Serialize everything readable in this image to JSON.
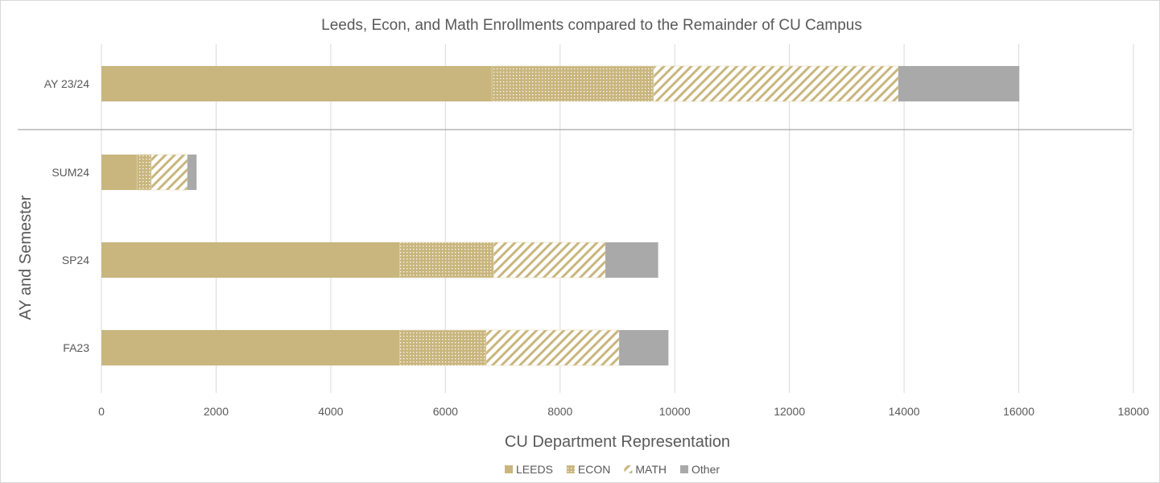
{
  "chart_data": {
    "type": "bar",
    "orientation": "horizontal",
    "stacked": true,
    "title": "Leeds, Econ, and Math Enrollments compared to the Remainder of CU Campus",
    "xlabel": "CU Department Representation",
    "ylabel": "AY and Semester",
    "xlim": [
      0,
      18000
    ],
    "xticks": [
      "0",
      "2000",
      "4000",
      "6000",
      "8000",
      "10000",
      "12000",
      "14000",
      "16000",
      "18000"
    ],
    "categories": [
      "AY 23/24",
      "SUM24",
      "SP24",
      "FA23"
    ],
    "series": [
      {
        "name": "LEEDS",
        "values": [
          6810,
          620,
          5200,
          5200
        ],
        "color": "#C9B67E",
        "pattern": "solid"
      },
      {
        "name": "ECON",
        "values": [
          2820,
          250,
          1640,
          1510
        ],
        "color": "#C9B67E",
        "pattern": "dots"
      },
      {
        "name": "MATH",
        "values": [
          4270,
          630,
          1950,
          2320
        ],
        "color": "#C9B67E",
        "pattern": "diagonal-stripes"
      },
      {
        "name": "Other",
        "values": [
          2110,
          160,
          920,
          860
        ],
        "color": "#A9A9A9",
        "pattern": "solid"
      }
    ],
    "grid": true,
    "legend": "bottom",
    "separator_after_category": "AY 23/24"
  }
}
